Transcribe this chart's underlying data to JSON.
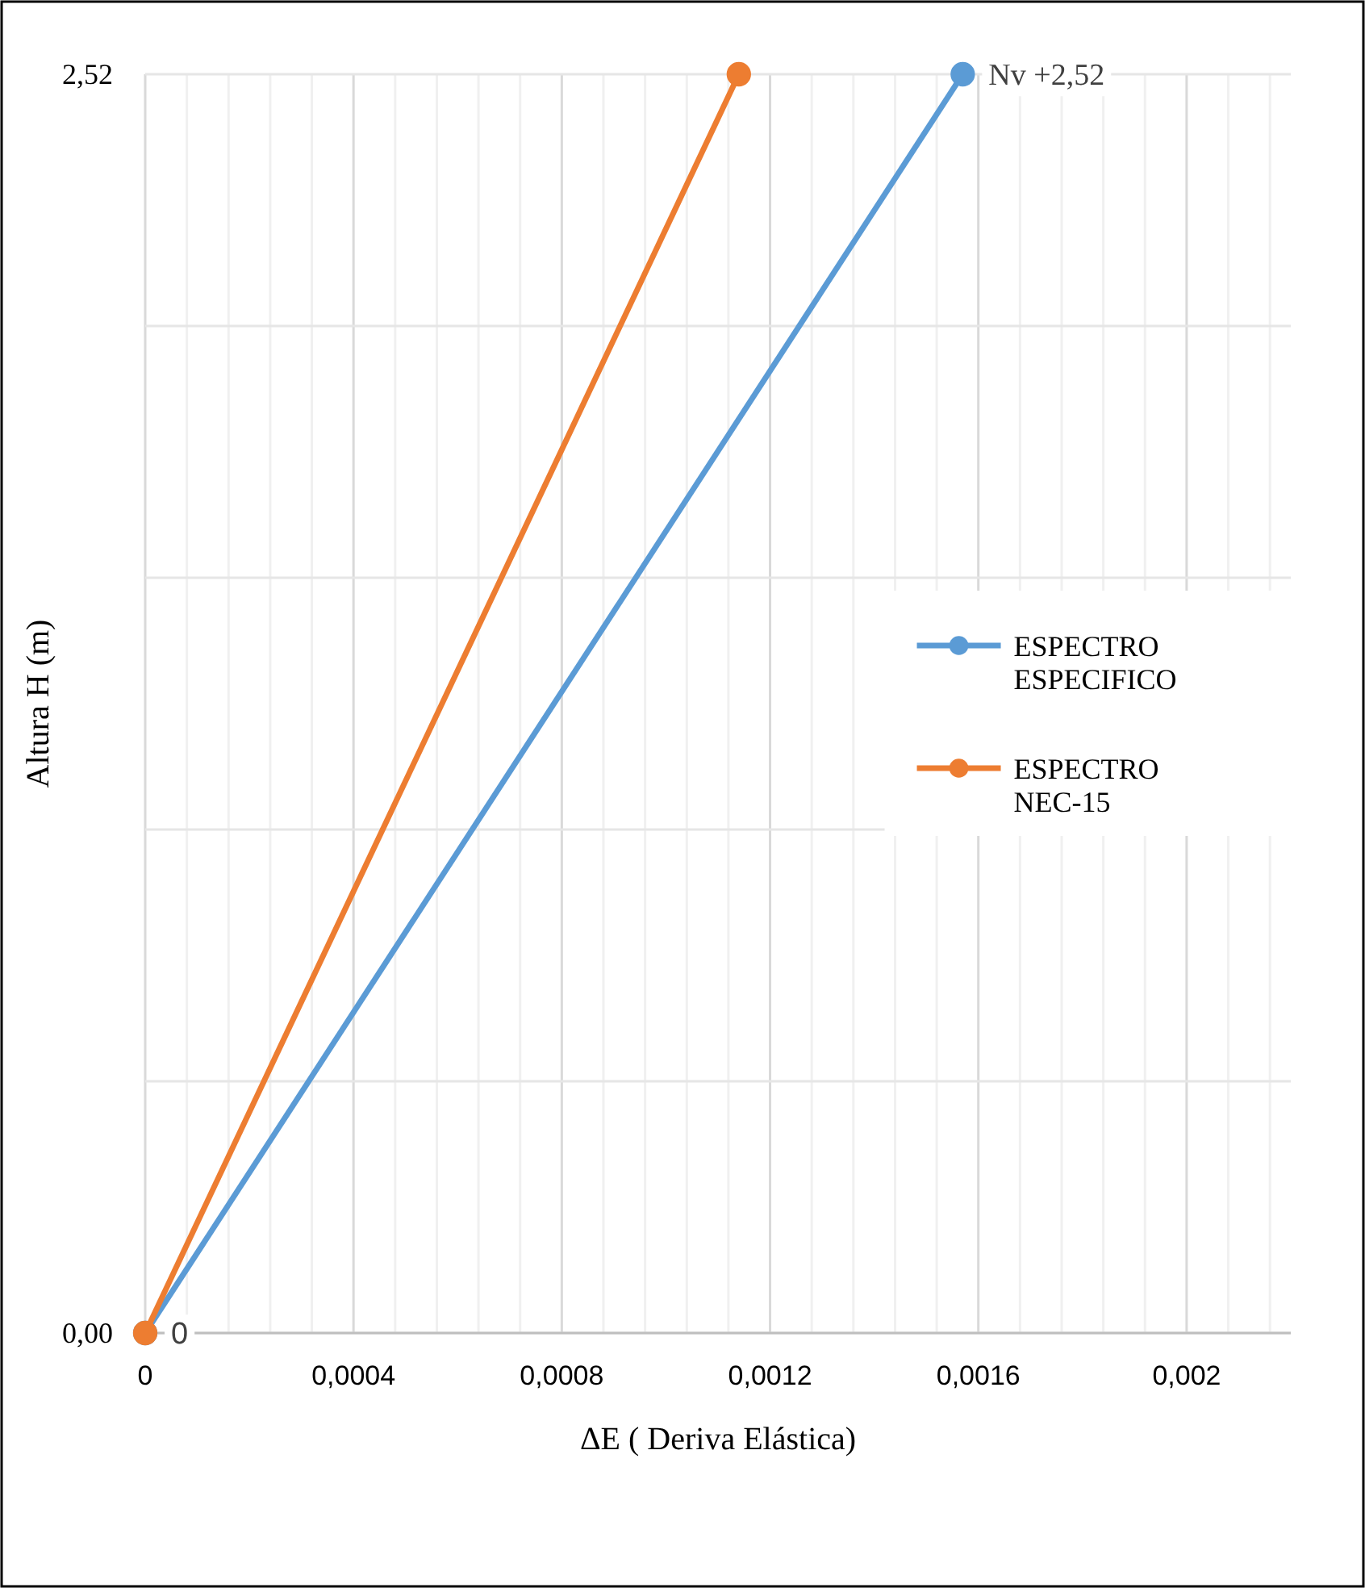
{
  "chart_data": {
    "type": "line",
    "xlabel": "ΔE ( Deriva Elástica)",
    "ylabel": "Altura H (m)",
    "series": [
      {
        "name": "ESPECTRO ESPECIFICO",
        "color": "#5b9bd5",
        "x": [
          0,
          0.00157
        ],
        "values": [
          0,
          2.52
        ]
      },
      {
        "name": "ESPECTRO NEC-15",
        "color": "#ed7d31",
        "x": [
          0,
          0.00114
        ],
        "values": [
          0,
          2.52
        ]
      }
    ],
    "xlim": [
      0,
      0.0022
    ],
    "xticks": [
      0,
      {
        "value": 8e-05,
        "label": null
      },
      {
        "value": 0.00016,
        "label": null
      },
      {
        "value": 0.00024,
        "label": null
      },
      {
        "value": 0.00032,
        "label": null
      },
      {
        "value": 0.0004,
        "label": "0,0004"
      },
      {
        "value": 0.00048,
        "label": null
      },
      {
        "value": 0.00056,
        "label": null
      },
      {
        "value": 0.00064,
        "label": null
      },
      {
        "value": 0.00072,
        "label": null
      },
      {
        "value": 0.0008,
        "label": "0,0008"
      },
      {
        "value": 0.00088,
        "label": null
      },
      {
        "value": 0.00096,
        "label": null
      },
      {
        "value": 0.00104,
        "label": null
      },
      {
        "value": 0.00112,
        "label": null
      },
      {
        "value": 0.0012,
        "label": "0,0012"
      },
      {
        "value": 0.00128,
        "label": null
      },
      {
        "value": 0.00136,
        "label": null
      },
      {
        "value": 0.00144,
        "label": null
      },
      {
        "value": 0.00152,
        "label": null
      },
      {
        "value": 0.0016,
        "label": "0,0016"
      },
      {
        "value": 0.00168,
        "label": null
      },
      {
        "value": 0.00176,
        "label": null
      },
      {
        "value": 0.00184,
        "label": null
      },
      {
        "value": 0.00192,
        "label": null
      },
      {
        "value": 0.002,
        "label": "0,002"
      },
      {
        "value": 0.00208,
        "label": null
      },
      {
        "value": 0.00216,
        "label": null
      }
    ],
    "ylim": [
      0,
      2.52
    ],
    "yticks": [
      {
        "value": 0,
        "label": "0,00"
      },
      {
        "value": 0.504,
        "label": null
      },
      {
        "value": 1.008,
        "label": null
      },
      {
        "value": 1.512,
        "label": null
      },
      {
        "value": 2.016,
        "label": null
      },
      {
        "value": 2.52,
        "label": "2,52"
      }
    ],
    "grid": true,
    "legend": "right",
    "marker": "circle",
    "line_style": "solid",
    "annotations": [
      {
        "text": "Nv +2,52",
        "x": 0.00157,
        "y": 2.52
      },
      {
        "text": "0",
        "x": 0,
        "y": 0
      }
    ]
  }
}
